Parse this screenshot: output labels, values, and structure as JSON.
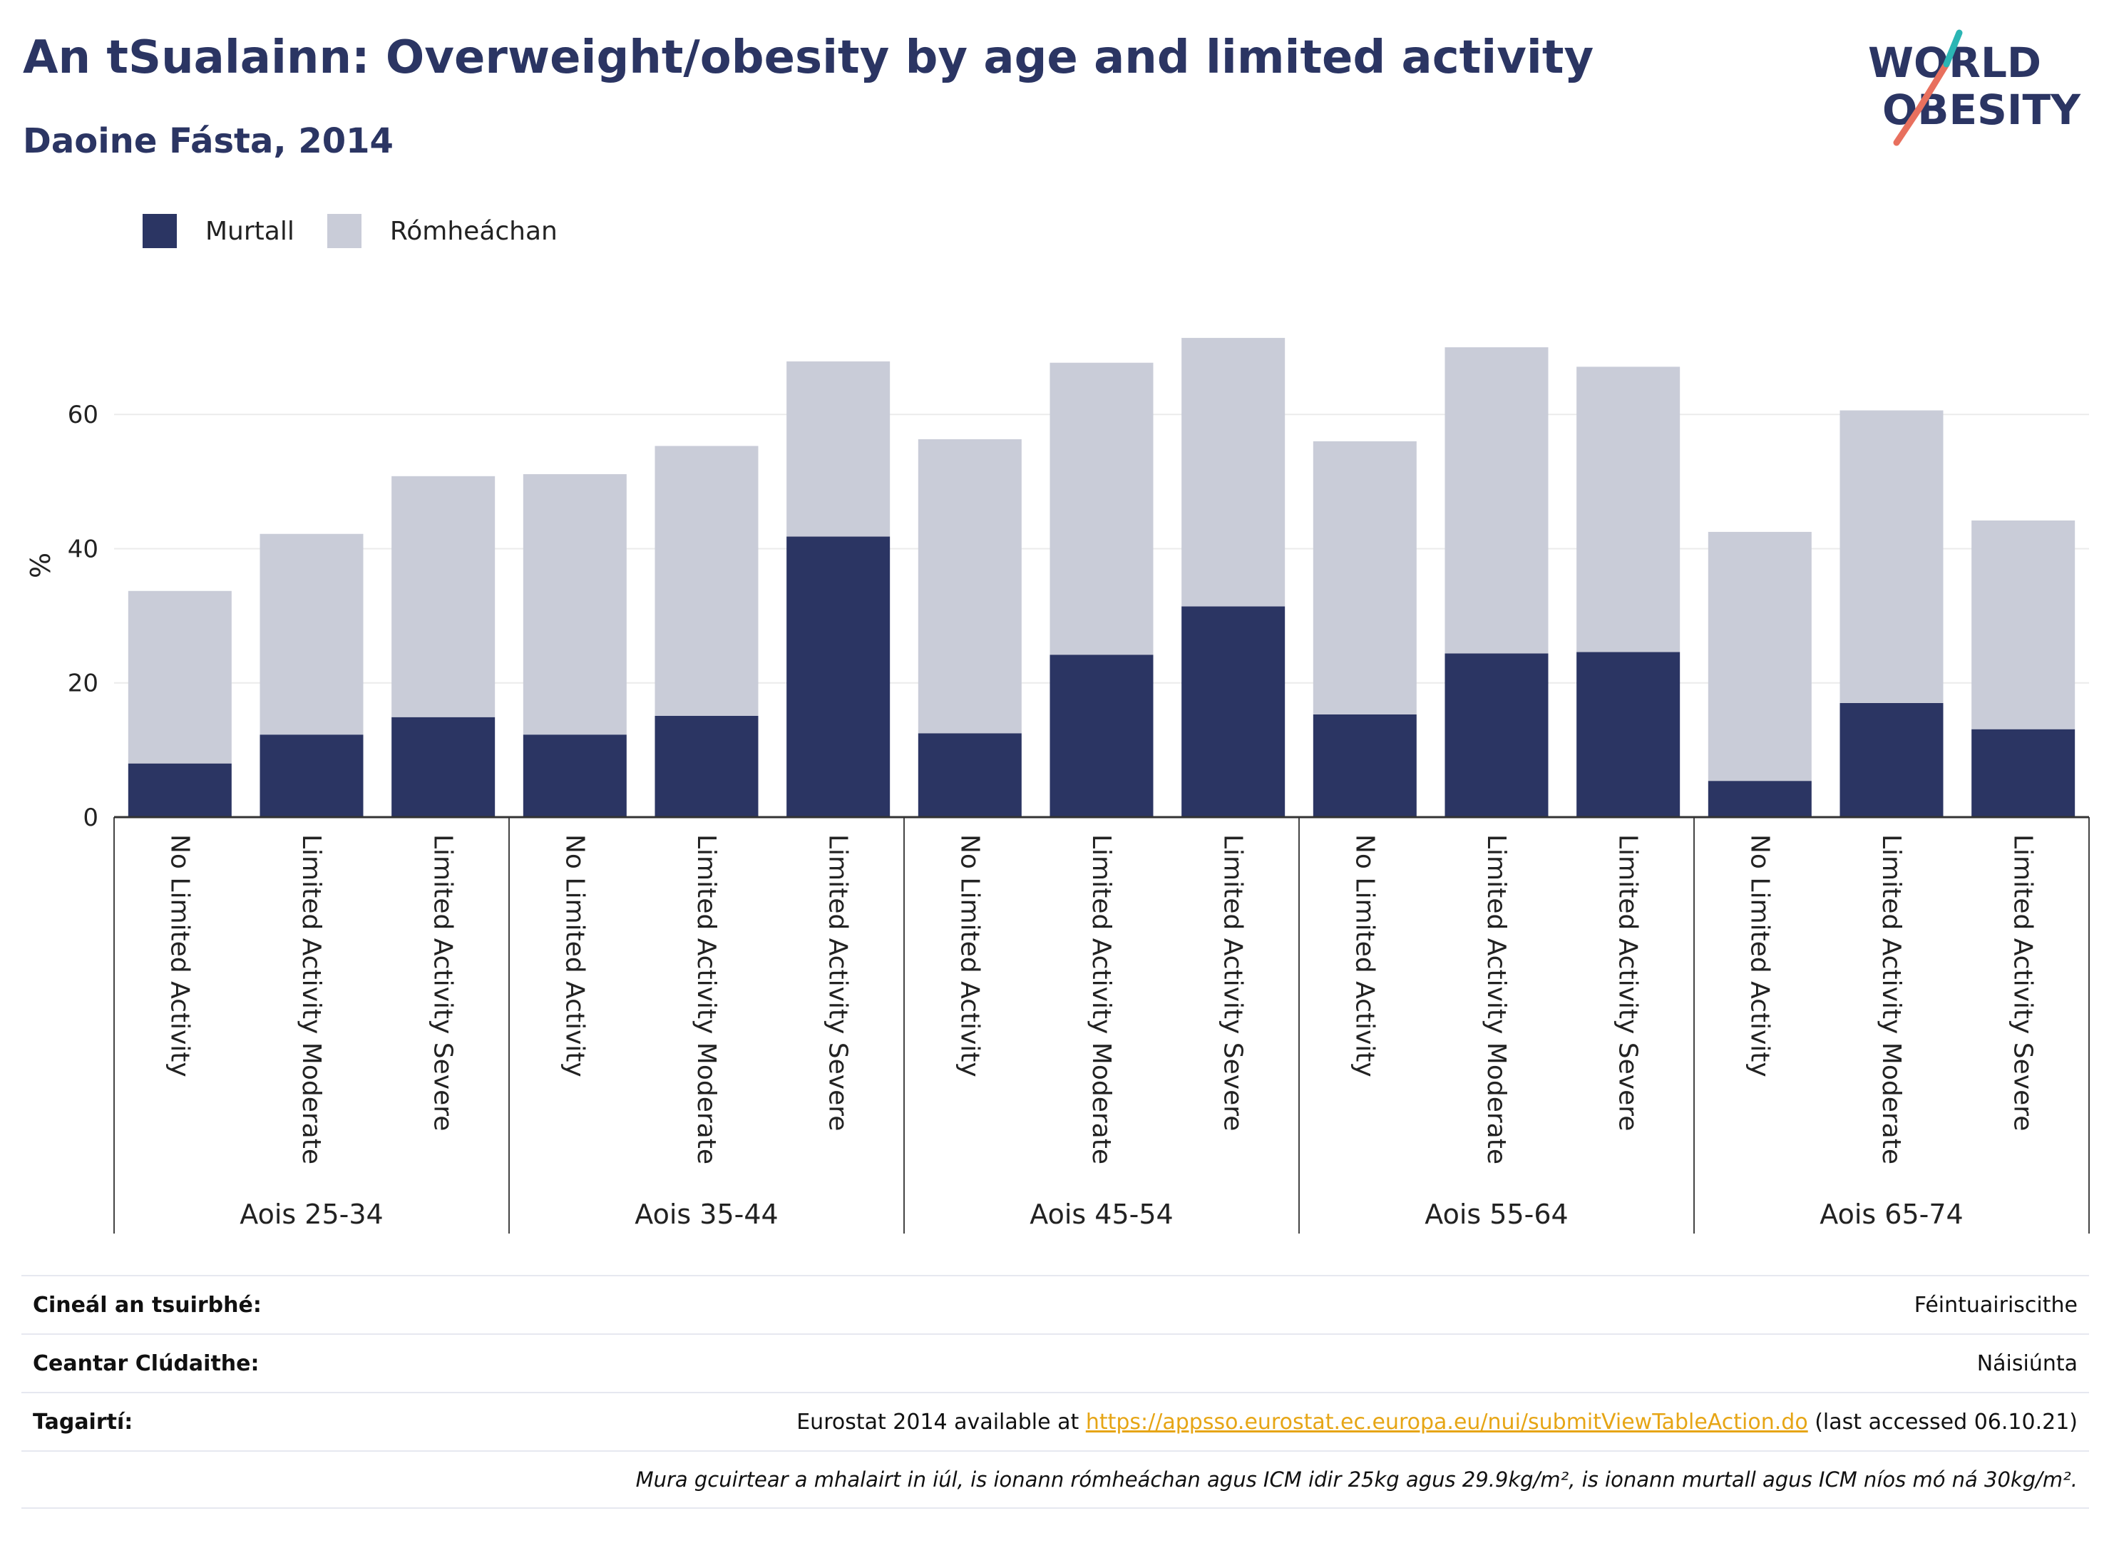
{
  "title": "An tSualainn: Overweight/obesity by age and limited activity",
  "subtitle": "Daoine Fásta, 2014",
  "logo": {
    "line1": "WORLD",
    "line2": "OBESITY"
  },
  "legend": [
    {
      "label": "Murtall",
      "color": "#2b3563"
    },
    {
      "label": "Rómheáchan",
      "color": "#c9ccd8"
    }
  ],
  "chart_data": {
    "type": "bar",
    "stacked": true,
    "ylabel": "%",
    "ylim": [
      0,
      75
    ],
    "yticks": [
      0,
      20,
      40,
      60
    ],
    "grid": true,
    "legend_position": "top-left",
    "groups": [
      "Aois 25-34",
      "Aois 35-44",
      "Aois 45-54",
      "Aois 55-64",
      "Aois 65-74"
    ],
    "subcategories": [
      "No Limited Activity",
      "Limited Activity Moderate",
      "Limited Activity Severe"
    ],
    "series": [
      {
        "name": "Murtall",
        "color": "#2b3563",
        "values": [
          8.0,
          12.3,
          14.9,
          12.3,
          15.1,
          41.8,
          12.5,
          24.2,
          31.4,
          15.3,
          24.4,
          24.6,
          5.4,
          17.0,
          13.1
        ]
      },
      {
        "name": "Rómheáchan",
        "color": "#c9ccd8",
        "values": [
          25.7,
          29.9,
          35.9,
          38.8,
          40.2,
          26.1,
          43.8,
          43.5,
          40.0,
          40.7,
          45.6,
          42.5,
          37.1,
          43.6,
          31.1
        ]
      }
    ]
  },
  "info": {
    "survey_label": "Cineál an tsuirbhé:",
    "survey_value": "Féintuairiscithe",
    "area_label": "Ceantar Clúdaithe:",
    "area_value": "Náisiúnta",
    "refs_label": "Tagairtí:",
    "refs_prefix": "Eurostat 2014 available at ",
    "refs_link": "https://appsso.eurostat.ec.europa.eu/nui/submitViewTableAction.do",
    "refs_suffix": " (last accessed 06.10.21)",
    "note": "Mura gcuirtear a mhalairt in iúl, is ionann rómheáchan agus ICM idir 25kg agus 29.9kg/m², is ionann murtall agus ICM níos mó ná 30kg/m²."
  }
}
